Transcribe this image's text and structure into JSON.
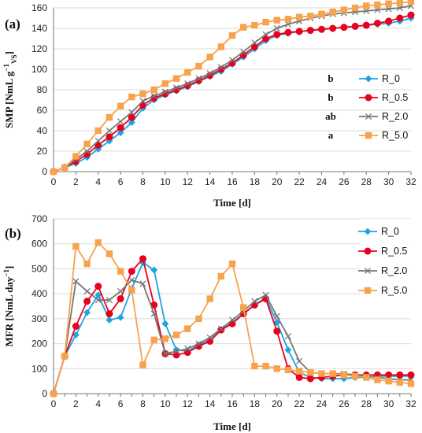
{
  "chart_data": [
    {
      "type": "line",
      "panel_label": "(a)",
      "panel_letter": "a",
      "title": "",
      "xlabel": "Time [d]",
      "ylabel_parts": [
        "SMP [NmL g",
        "−1",
        "VS",
        "]"
      ],
      "x": [
        0,
        1,
        2,
        3,
        4,
        5,
        6,
        7,
        8,
        9,
        10,
        11,
        12,
        13,
        14,
        15,
        16,
        17,
        18,
        19,
        20,
        21,
        22,
        23,
        24,
        25,
        26,
        27,
        28,
        29,
        30,
        31,
        32
      ],
      "xlim": [
        0,
        32
      ],
      "ylim": [
        0,
        160
      ],
      "xticks": [
        0,
        2,
        4,
        6,
        8,
        10,
        12,
        14,
        16,
        18,
        20,
        22,
        24,
        26,
        28,
        30,
        32
      ],
      "yticks": [
        0,
        20,
        40,
        60,
        80,
        100,
        120,
        140,
        160
      ],
      "legend_position": "right",
      "series": [
        {
          "name": "R_0",
          "significance": "b",
          "color": "#1ea5e0",
          "marker": "diamond",
          "values": [
            0,
            4,
            8,
            14,
            22,
            30,
            38,
            48,
            62,
            70,
            75,
            79,
            83,
            88,
            93,
            98,
            105,
            112,
            120,
            128,
            133,
            135,
            137,
            138,
            139,
            140,
            141,
            142,
            143,
            144,
            145,
            147,
            150
          ]
        },
        {
          "name": "R_0.5",
          "significance": "b",
          "color": "#e8001c",
          "marker": "circle",
          "values": [
            0,
            4,
            10,
            17,
            26,
            34,
            43,
            53,
            65,
            72,
            76,
            80,
            84,
            89,
            94,
            100,
            106,
            114,
            122,
            130,
            134,
            136,
            137,
            138,
            139,
            140,
            141,
            142,
            143,
            145,
            147,
            150,
            153
          ]
        },
        {
          "name": "R_2.0",
          "significance": "ab",
          "color": "#767676",
          "marker": "x",
          "values": [
            0,
            4,
            12,
            20,
            30,
            40,
            49,
            58,
            69,
            74,
            78,
            82,
            86,
            91,
            96,
            102,
            109,
            117,
            126,
            134,
            140,
            144,
            147,
            150,
            152,
            154,
            155,
            156,
            157,
            158,
            159,
            160,
            162
          ]
        },
        {
          "name": "R_5.0",
          "significance": "a",
          "color": "#f7a24c",
          "marker": "square",
          "values": [
            0,
            4,
            15,
            27,
            40,
            53,
            64,
            73,
            76,
            80,
            86,
            91,
            97,
            103,
            112,
            122,
            133,
            141,
            143,
            146,
            148,
            149,
            151,
            152,
            154,
            156,
            158,
            160,
            162,
            163,
            164,
            165,
            166
          ]
        }
      ]
    },
    {
      "type": "line",
      "panel_label": "(b)",
      "panel_letter": "b",
      "title": "",
      "xlabel": "Time [d]",
      "ylabel_parts": [
        "MFR [NmL day",
        "−1",
        "",
        "]"
      ],
      "x": [
        0,
        1,
        2,
        3,
        4,
        5,
        6,
        7,
        8,
        9,
        10,
        11,
        12,
        13,
        14,
        15,
        16,
        17,
        18,
        19,
        20,
        21,
        22,
        23,
        24,
        25,
        26,
        27,
        28,
        29,
        30,
        31,
        32
      ],
      "xlim": [
        0,
        32
      ],
      "ylim": [
        0,
        700
      ],
      "xticks": [
        0,
        1,
        2,
        3,
        4,
        5,
        6,
        7,
        8,
        9,
        10,
        11,
        12,
        13,
        14,
        15,
        16,
        17,
        18,
        19,
        20,
        21,
        22,
        23,
        24,
        25,
        26,
        27,
        28,
        29,
        30,
        31,
        32
      ],
      "xtick_labels_every": 2,
      "yticks": [
        0,
        100,
        200,
        300,
        400,
        500,
        600,
        700
      ],
      "legend_position": "top-right",
      "series": [
        {
          "name": "R_0",
          "color": "#1ea5e0",
          "marker": "diamond",
          "values": [
            0,
            150,
            235,
            325,
            395,
            295,
            305,
            420,
            525,
            495,
            280,
            175,
            170,
            195,
            215,
            255,
            285,
            320,
            355,
            385,
            285,
            175,
            85,
            65,
            60,
            60,
            60,
            65,
            65,
            70,
            70,
            70,
            70
          ]
        },
        {
          "name": "R_0.5",
          "color": "#e8001c",
          "marker": "circle",
          "values": [
            0,
            150,
            270,
            370,
            430,
            320,
            380,
            490,
            540,
            355,
            160,
            155,
            165,
            190,
            210,
            255,
            280,
            320,
            355,
            380,
            250,
            100,
            65,
            60,
            65,
            70,
            75,
            75,
            75,
            75,
            75,
            75,
            75
          ]
        },
        {
          "name": "R_2.0",
          "color": "#767676",
          "marker": "x",
          "values": [
            0,
            150,
            450,
            410,
            375,
            375,
            410,
            455,
            440,
            320,
            160,
            170,
            180,
            200,
            225,
            260,
            295,
            330,
            370,
            395,
            310,
            230,
            130,
            85,
            80,
            80,
            80,
            75,
            70,
            65,
            60,
            55,
            55
          ]
        },
        {
          "name": "R_5.0",
          "color": "#f7a24c",
          "marker": "square",
          "values": [
            0,
            150,
            590,
            520,
            605,
            560,
            490,
            415,
            115,
            215,
            220,
            235,
            260,
            300,
            380,
            470,
            520,
            345,
            110,
            110,
            100,
            95,
            90,
            85,
            80,
            80,
            75,
            70,
            65,
            55,
            50,
            45,
            40
          ]
        }
      ]
    }
  ]
}
